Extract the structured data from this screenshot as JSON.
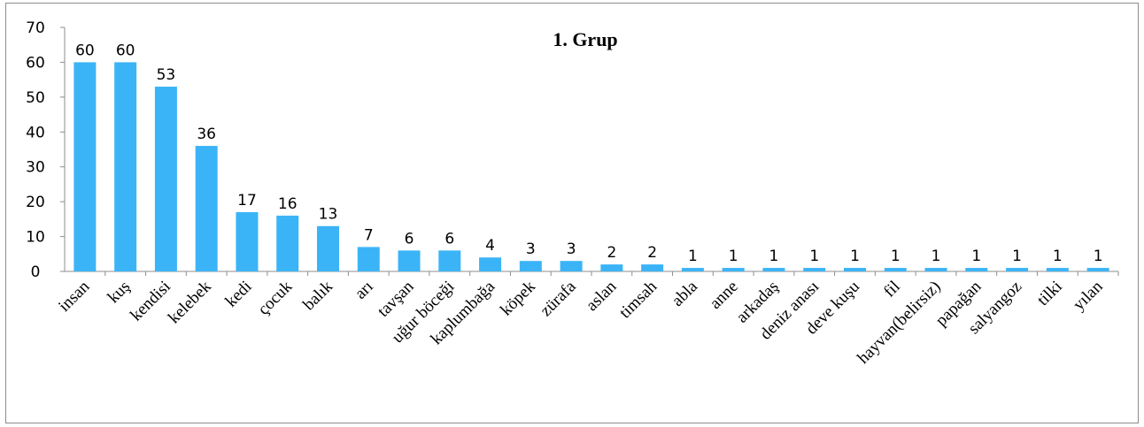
{
  "chart_data": {
    "type": "bar",
    "title": "1. Grup",
    "xlabel": "",
    "ylabel": "",
    "ylim": [
      0,
      70
    ],
    "yticks": [
      0,
      10,
      20,
      30,
      40,
      50,
      60,
      70
    ],
    "grid": false,
    "legend": "none",
    "bar_color": "#3bb4f7",
    "categories": [
      "insan",
      "kuş",
      "kendisi",
      "kelebek",
      "kedi",
      "çocuk",
      "balık",
      "arı",
      "tavşan",
      "uğur böceği",
      "kaplumbağa",
      "köpek",
      "zürafa",
      "aslan",
      "timsah",
      "abla",
      "anne",
      "arkadaş",
      "deniz anası",
      "deve kuşu",
      "fil",
      "hayvan(belirsiz)",
      "papağan",
      "salyangoz",
      "tilki",
      "yılan"
    ],
    "values": [
      60,
      60,
      53,
      36,
      17,
      16,
      13,
      7,
      6,
      6,
      4,
      3,
      3,
      2,
      2,
      1,
      1,
      1,
      1,
      1,
      1,
      1,
      1,
      1,
      1,
      1
    ]
  }
}
